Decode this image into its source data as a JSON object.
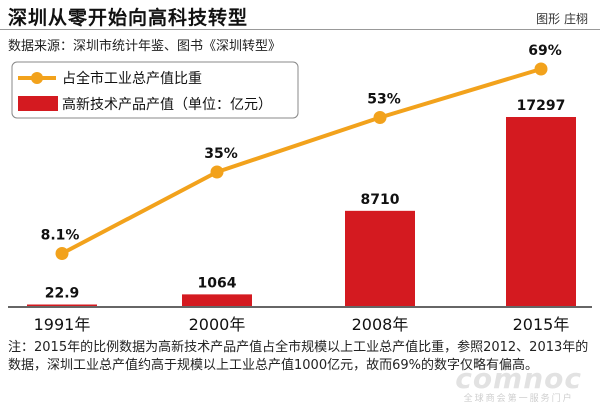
{
  "title": "深圳从零开始向高科技转型",
  "credit": "图形 庄栩",
  "source": "数据来源：深圳市统计年鉴、图书《深圳转型》",
  "note": "注：2015年的比例数据为高新技术产品产值占全市规模以上工业总产值比重，参照2012、2013年的数据，深圳工业总产值约高于规模以上工业总产值1000亿元，故而69%的数字仅略有偏高。",
  "watermark": {
    "logo": "comnoc",
    "sub": "全球商会第一服务门户"
  },
  "chart_data": {
    "type": "bar+line",
    "categories": [
      "1991年",
      "2000年",
      "2008年",
      "2015年"
    ],
    "series": [
      {
        "name": "占全市工业总产值比重",
        "type": "line",
        "color": "#f2a21c",
        "values": [
          8.1,
          35,
          53,
          69
        ],
        "labels": [
          "8.1%",
          "35%",
          "53%",
          "69%"
        ]
      },
      {
        "name": "高新技术产品产值（单位：亿元）",
        "type": "bar",
        "color": "#d41a20",
        "values": [
          22.9,
          1064,
          8710,
          17297
        ],
        "labels": [
          "22.9",
          "1064",
          "8710",
          "17297"
        ]
      }
    ],
    "legend_position": "top-left",
    "grid": false
  }
}
